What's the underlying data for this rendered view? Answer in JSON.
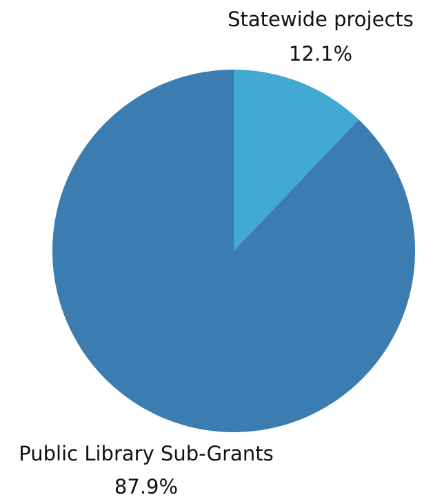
{
  "chart_data": {
    "type": "pie",
    "title": "",
    "slices": [
      {
        "label": "Statewide projects",
        "value": 12.1,
        "value_label": "12.1%",
        "color": "#41a9d2"
      },
      {
        "label": "Public Library Sub-Grants",
        "value": 87.9,
        "value_label": "87.9%",
        "color": "#3b7db1"
      }
    ],
    "start_angle": "12 o'clock",
    "direction": "clockwise",
    "legend": "none"
  }
}
